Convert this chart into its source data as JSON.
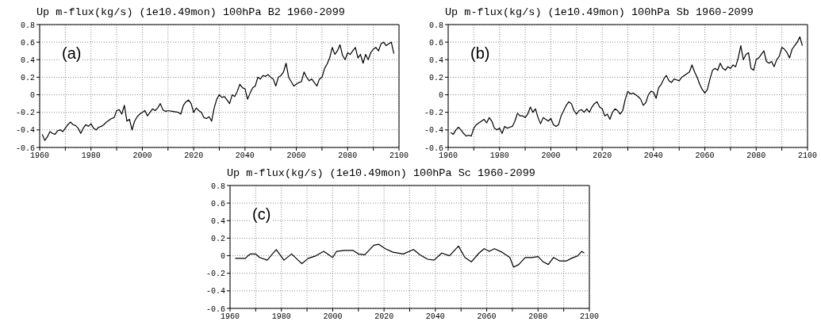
{
  "chart_data": [
    {
      "type": "line",
      "title": "Up m-flux(kg/s) (1e10.49mon) 100hPa B2 1960-2099",
      "annotations": [
        "(a)"
      ],
      "color": "#000000",
      "grid": true,
      "line_style": "solid",
      "xlim": [
        1960,
        2100
      ],
      "xticks": [
        1960,
        {
          "value": 1970,
          "label": null
        },
        1980,
        {
          "value": 1990,
          "label": null
        },
        2000,
        {
          "value": 2010,
          "label": null
        },
        2020,
        {
          "value": 2030,
          "label": null
        },
        2040,
        {
          "value": 2050,
          "label": null
        },
        2060,
        {
          "value": 2070,
          "label": null
        },
        2080,
        {
          "value": 2090,
          "label": null
        },
        2100
      ],
      "ylim": [
        -0.6,
        0.8
      ],
      "yticks": [
        -0.6,
        -0.4,
        -0.2,
        0,
        0.2,
        0.4,
        0.6,
        0.8
      ],
      "x": [
        1961,
        1962,
        1963,
        1964,
        1965,
        1966,
        1967,
        1968,
        1969,
        1970,
        1971,
        1972,
        1973,
        1974,
        1975,
        1976,
        1977,
        1978,
        1979,
        1980,
        1981,
        1982,
        1983,
        1984,
        1985,
        1986,
        1987,
        1988,
        1989,
        1990,
        1991,
        1992,
        1993,
        1994,
        1995,
        1996,
        1997,
        1998,
        1999,
        2000,
        2001,
        2002,
        2003,
        2004,
        2005,
        2006,
        2007,
        2008,
        2009,
        2010,
        2012,
        2014,
        2015,
        2016,
        2017,
        2018,
        2019,
        2020,
        2021,
        2022,
        2023,
        2024,
        2025,
        2026,
        2027,
        2028,
        2029,
        2030,
        2031,
        2032,
        2033,
        2034,
        2035,
        2036,
        2037,
        2038,
        2039,
        2040,
        2041,
        2042,
        2043,
        2044,
        2045,
        2046,
        2047,
        2048,
        2049,
        2050,
        2051,
        2052,
        2053,
        2054,
        2055,
        2056,
        2057,
        2058,
        2059,
        2060,
        2061,
        2062,
        2063,
        2064,
        2065,
        2066,
        2067,
        2068,
        2069,
        2070,
        2071,
        2072,
        2073,
        2074,
        2075,
        2076,
        2077,
        2078,
        2079,
        2080,
        2081,
        2082,
        2083,
        2084,
        2085,
        2086,
        2087,
        2088,
        2089,
        2090,
        2091,
        2092,
        2093,
        2094,
        2095,
        2096,
        2097,
        2098
      ],
      "values": [
        -0.45,
        -0.52,
        -0.48,
        -0.42,
        -0.44,
        -0.45,
        -0.41,
        -0.4,
        -0.42,
        -0.38,
        -0.34,
        -0.31,
        -0.34,
        -0.35,
        -0.38,
        -0.44,
        -0.38,
        -0.34,
        -0.36,
        -0.33,
        -0.38,
        -0.4,
        -0.37,
        -0.36,
        -0.34,
        -0.31,
        -0.29,
        -0.27,
        -0.26,
        -0.18,
        -0.17,
        -0.22,
        -0.12,
        -0.3,
        -0.28,
        -0.4,
        -0.3,
        -0.25,
        -0.22,
        -0.2,
        -0.18,
        -0.24,
        -0.2,
        -0.16,
        -0.18,
        -0.15,
        -0.1,
        -0.17,
        -0.19,
        -0.18,
        -0.19,
        -0.2,
        -0.22,
        -0.12,
        -0.08,
        -0.06,
        -0.1,
        -0.2,
        -0.15,
        -0.18,
        -0.2,
        -0.26,
        -0.27,
        -0.25,
        -0.3,
        -0.15,
        -0.05,
        0.0,
        -0.03,
        -0.02,
        -0.06,
        -0.1,
        0.0,
        -0.02,
        0.04,
        0.12,
        0.08,
        0.07,
        -0.05,
        0.02,
        0.08,
        0.1,
        0.2,
        0.18,
        0.22,
        0.21,
        0.23,
        0.2,
        0.18,
        0.1,
        0.2,
        0.22,
        0.26,
        0.36,
        0.2,
        0.15,
        0.1,
        0.12,
        0.14,
        0.15,
        0.26,
        0.2,
        0.16,
        0.18,
        0.14,
        0.1,
        0.18,
        0.2,
        0.3,
        0.35,
        0.42,
        0.54,
        0.46,
        0.5,
        0.57,
        0.45,
        0.4,
        0.48,
        0.46,
        0.5,
        0.54,
        0.42,
        0.46,
        0.36,
        0.46,
        0.4,
        0.48,
        0.52,
        0.54,
        0.5,
        0.58,
        0.6,
        0.56,
        0.58,
        0.6,
        0.47
      ]
    },
    {
      "type": "line",
      "title": "Up m-flux(kg/s) (1e10.49mon) 100hPa Sb 1960-2099",
      "annotations": [
        "(b)"
      ],
      "color": "#000000",
      "grid": true,
      "line_style": "solid",
      "xlim": [
        1960,
        2100
      ],
      "xticks": [
        1960,
        {
          "value": 1970,
          "label": null
        },
        1980,
        {
          "value": 1990,
          "label": null
        },
        2000,
        {
          "value": 2010,
          "label": null
        },
        2020,
        {
          "value": 2030,
          "label": null
        },
        2040,
        {
          "value": 2050,
          "label": null
        },
        2060,
        {
          "value": 2070,
          "label": null
        },
        2080,
        {
          "value": 2090,
          "label": null
        },
        2100
      ],
      "ylim": [
        -0.6,
        0.8
      ],
      "yticks": [
        -0.6,
        -0.4,
        -0.2,
        0,
        0.2,
        0.4,
        0.6,
        0.8
      ],
      "x": [
        1961,
        1962,
        1963,
        1964,
        1965,
        1966,
        1967,
        1968,
        1969,
        1970,
        1971,
        1972,
        1973,
        1974,
        1975,
        1976,
        1977,
        1978,
        1979,
        1980,
        1981,
        1982,
        1983,
        1984,
        1985,
        1986,
        1987,
        1988,
        1989,
        1990,
        1991,
        1992,
        1993,
        1994,
        1995,
        1996,
        1997,
        1998,
        1999,
        2000,
        2001,
        2002,
        2003,
        2004,
        2005,
        2006,
        2007,
        2008,
        2009,
        2010,
        2011,
        2012,
        2013,
        2014,
        2015,
        2016,
        2017,
        2018,
        2019,
        2020,
        2021,
        2022,
        2023,
        2024,
        2025,
        2026,
        2027,
        2028,
        2029,
        2030,
        2031,
        2032,
        2033,
        2034,
        2035,
        2036,
        2037,
        2038,
        2039,
        2040,
        2041,
        2042,
        2043,
        2044,
        2045,
        2046,
        2047,
        2048,
        2049,
        2050,
        2051,
        2052,
        2053,
        2054,
        2055,
        2056,
        2057,
        2058,
        2059,
        2060,
        2061,
        2062,
        2063,
        2064,
        2065,
        2066,
        2067,
        2068,
        2069,
        2070,
        2071,
        2072,
        2073,
        2074,
        2075,
        2076,
        2077,
        2078,
        2079,
        2080,
        2081,
        2082,
        2083,
        2084,
        2085,
        2086,
        2087,
        2088,
        2089,
        2090,
        2091,
        2092,
        2093,
        2094,
        2095,
        2096,
        2097,
        2098
      ],
      "values": [
        -0.43,
        -0.45,
        -0.4,
        -0.37,
        -0.4,
        -0.44,
        -0.47,
        -0.46,
        -0.47,
        -0.38,
        -0.34,
        -0.32,
        -0.3,
        -0.28,
        -0.32,
        -0.26,
        -0.3,
        -0.38,
        -0.4,
        -0.38,
        -0.44,
        -0.36,
        -0.38,
        -0.37,
        -0.36,
        -0.3,
        -0.21,
        -0.24,
        -0.24,
        -0.26,
        -0.22,
        -0.14,
        -0.2,
        -0.16,
        -0.26,
        -0.33,
        -0.26,
        -0.28,
        -0.3,
        -0.27,
        -0.34,
        -0.36,
        -0.34,
        -0.24,
        -0.18,
        -0.12,
        -0.08,
        -0.1,
        -0.18,
        -0.22,
        -0.18,
        -0.17,
        -0.2,
        -0.16,
        -0.2,
        -0.14,
        -0.1,
        -0.08,
        -0.14,
        -0.16,
        -0.24,
        -0.22,
        -0.28,
        -0.2,
        -0.16,
        -0.18,
        -0.22,
        -0.18,
        -0.05,
        0.04,
        0.01,
        0.02,
        0.0,
        -0.02,
        -0.05,
        -0.12,
        -0.09,
        0.0,
        0.04,
        0.03,
        -0.04,
        0.08,
        0.12,
        0.18,
        0.22,
        0.16,
        0.14,
        0.18,
        0.17,
        0.16,
        0.2,
        0.22,
        0.24,
        0.26,
        0.34,
        0.26,
        0.2,
        0.12,
        0.06,
        0.02,
        0.06,
        0.18,
        0.28,
        0.3,
        0.28,
        0.36,
        0.3,
        0.28,
        0.32,
        0.3,
        0.34,
        0.32,
        0.42,
        0.56,
        0.4,
        0.46,
        0.48,
        0.3,
        0.28,
        0.4,
        0.42,
        0.46,
        0.5,
        0.38,
        0.36,
        0.38,
        0.32,
        0.4,
        0.44,
        0.54,
        0.52,
        0.48,
        0.42,
        0.52,
        0.56,
        0.6,
        0.66,
        0.56
      ]
    },
    {
      "type": "line",
      "title": "Up m-flux(kg/s) (1e10.49mon) 100hPa Sc 1960-2099",
      "annotations": [
        "(c)"
      ],
      "color": "#000000",
      "grid": true,
      "line_style": "solid",
      "xlim": [
        1960,
        2100
      ],
      "xticks": [
        1960,
        {
          "value": 1970,
          "label": null
        },
        1980,
        {
          "value": 1990,
          "label": null
        },
        2000,
        {
          "value": 2010,
          "label": null
        },
        2020,
        {
          "value": 2030,
          "label": null
        },
        2040,
        {
          "value": 2050,
          "label": null
        },
        2060,
        {
          "value": 2070,
          "label": null
        },
        2080,
        {
          "value": 2090,
          "label": null
        },
        2100
      ],
      "ylim": [
        -0.6,
        0.8
      ],
      "yticks": [
        -0.6,
        -0.4,
        -0.2,
        0,
        0.2,
        0.4,
        0.6,
        0.8
      ],
      "x": [
        1962,
        1966,
        1967,
        1968,
        1970,
        1971.5,
        1974.5,
        1976.5,
        1978,
        1981,
        1984,
        1986.5,
        1988,
        1990.5,
        1993.5,
        1996.5,
        2000,
        2001.5,
        2004.5,
        2008,
        2010,
        2012.5,
        2016,
        2018,
        2020.5,
        2023.5,
        2027.5,
        2031.5,
        2034,
        2037,
        2039.5,
        2042.5,
        2045.5,
        2049,
        2051.5,
        2054,
        2057,
        2059,
        2061,
        2063,
        2066,
        2069,
        2070.5,
        2072.5,
        2075,
        2077.5,
        2080,
        2082,
        2084,
        2086,
        2088.5,
        2091,
        2093,
        2095.5,
        2097,
        2098
      ],
      "values": [
        -0.03,
        -0.03,
        0.0,
        0.02,
        0.02,
        -0.02,
        -0.05,
        0.02,
        0.07,
        -0.05,
        0.02,
        -0.05,
        -0.09,
        -0.03,
        0.0,
        0.05,
        -0.02,
        0.05,
        0.06,
        0.06,
        0.02,
        0.01,
        0.12,
        0.13,
        0.08,
        0.04,
        0.02,
        0.07,
        0.01,
        -0.04,
        -0.05,
        0.03,
        0.0,
        0.11,
        -0.02,
        -0.07,
        0.03,
        0.08,
        0.05,
        0.08,
        0.04,
        -0.02,
        -0.13,
        -0.1,
        -0.02,
        -0.02,
        -0.01,
        -0.07,
        -0.1,
        -0.02,
        -0.06,
        -0.06,
        -0.03,
        0.0,
        0.05,
        0.03
      ]
    }
  ]
}
